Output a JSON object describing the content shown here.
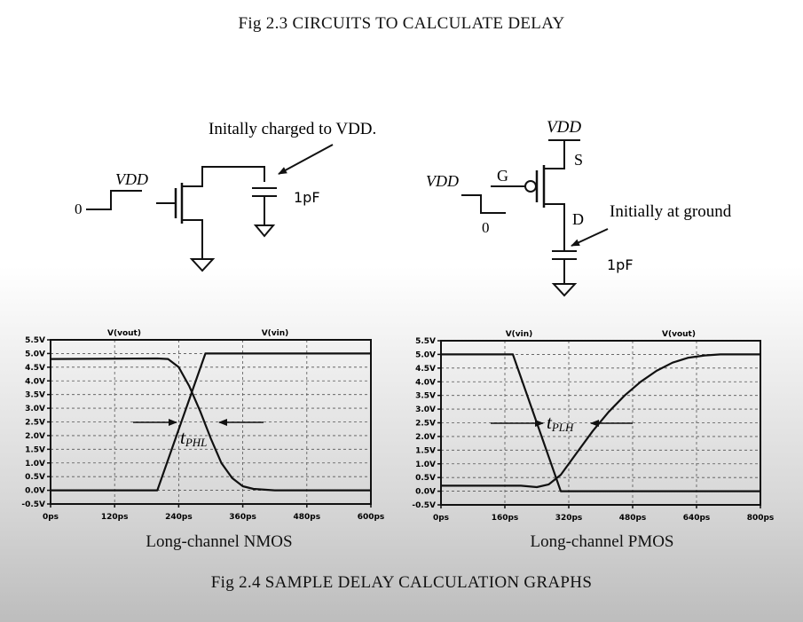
{
  "captions": {
    "fig23": "Fig 2.3 CIRCUITS TO CALCULATE DELAY",
    "fig24": "Fig 2.4 SAMPLE DELAY CALCULATION GRAPHS"
  },
  "nmos_circuit": {
    "annotation": "Initally charged to VDD.",
    "input_high": "VDD",
    "input_low": "0",
    "cap": "1pF"
  },
  "pmos_circuit": {
    "supply": "VDD",
    "source": "S",
    "gate": "G",
    "drain": "D",
    "input_high": "VDD",
    "input_low": "0",
    "annotation": "Initially at ground",
    "cap": "1pF"
  },
  "chart_data": [
    {
      "type": "line",
      "subtitle": "Long-channel NMOS",
      "x_ticks": [
        "0ps",
        "120ps",
        "240ps",
        "360ps",
        "480ps",
        "600ps"
      ],
      "y_ticks": [
        "5.5V",
        "5.0V",
        "4.5V",
        "4.0V",
        "3.5V",
        "3.0V",
        "2.5V",
        "2.0V",
        "1.5V",
        "1.0V",
        "0.5V",
        "0.0V",
        "-0.5V"
      ],
      "xlim": [
        0,
        600
      ],
      "ylim": [
        -0.5,
        5.5
      ],
      "grid": true,
      "annotation": "t_PHL",
      "annotation_main": "t",
      "annotation_sub": "PHL",
      "series": [
        {
          "name": "V(vin)",
          "x": [
            0,
            200,
            290,
            600
          ],
          "y": [
            0,
            0,
            5,
            5
          ]
        },
        {
          "name": "V(vout)",
          "x": [
            0,
            200,
            220,
            240,
            260,
            280,
            300,
            320,
            340,
            360,
            380,
            420,
            600
          ],
          "y": [
            4.8,
            4.82,
            4.8,
            4.5,
            3.8,
            2.9,
            1.9,
            1.0,
            0.45,
            0.15,
            0.05,
            0.0,
            0.0
          ]
        }
      ]
    },
    {
      "type": "line",
      "subtitle": "Long-channel PMOS",
      "x_ticks": [
        "0ps",
        "160ps",
        "320ps",
        "480ps",
        "640ps",
        "800ps"
      ],
      "y_ticks": [
        "5.5V",
        "5.0V",
        "4.5V",
        "4.0V",
        "3.5V",
        "3.0V",
        "2.5V",
        "2.0V",
        "1.5V",
        "1.0V",
        "0.5V",
        "0.0V",
        "-0.5V"
      ],
      "xlim": [
        0,
        800
      ],
      "ylim": [
        -0.5,
        5.5
      ],
      "grid": true,
      "annotation": "t_PLH",
      "annotation_main": "t",
      "annotation_sub": "PLH",
      "series": [
        {
          "name": "V(vin)",
          "x": [
            0,
            180,
            300,
            800
          ],
          "y": [
            5,
            5,
            0,
            0
          ]
        },
        {
          "name": "V(vout)",
          "x": [
            0,
            200,
            240,
            270,
            300,
            340,
            380,
            420,
            460,
            500,
            540,
            580,
            620,
            660,
            700,
            800
          ],
          "y": [
            0.2,
            0.2,
            0.15,
            0.25,
            0.6,
            1.4,
            2.2,
            2.9,
            3.5,
            4.0,
            4.4,
            4.7,
            4.88,
            4.96,
            5.0,
            5.0
          ]
        }
      ]
    }
  ]
}
